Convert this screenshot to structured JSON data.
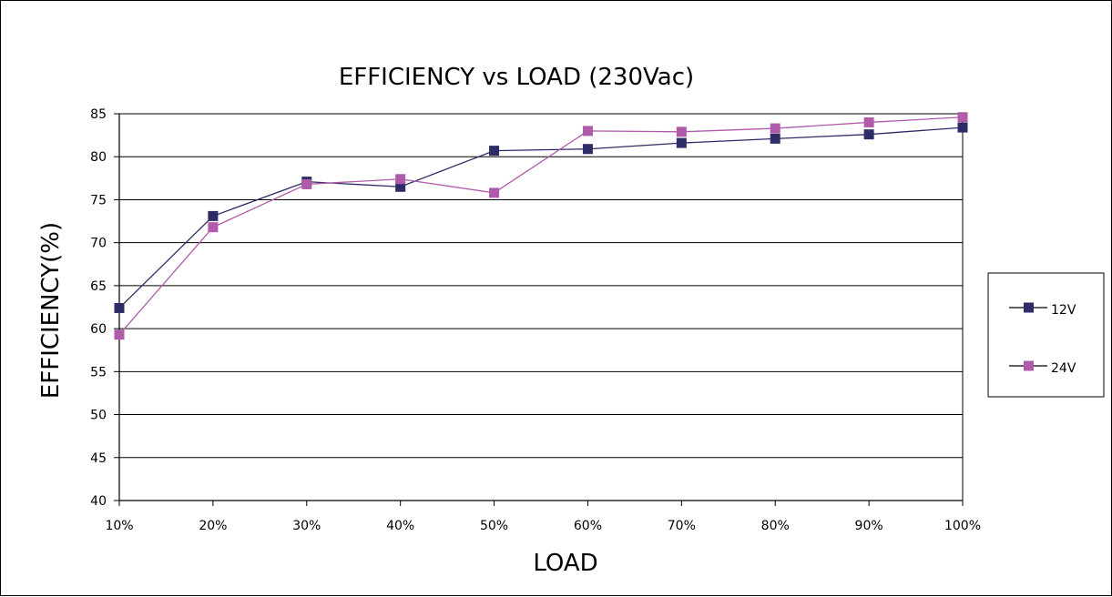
{
  "chart_data": {
    "type": "line",
    "title": "EFFICIENCY vs LOAD (230Vac)",
    "xlabel": "LOAD",
    "ylabel": "EFFICIENCY(%)",
    "categories": [
      "10%",
      "20%",
      "30%",
      "40%",
      "50%",
      "60%",
      "70%",
      "80%",
      "90%",
      "100%"
    ],
    "ylim": [
      40,
      85
    ],
    "yticks": [
      85,
      80,
      75,
      70,
      65,
      60,
      55,
      50,
      45,
      40
    ],
    "grid": true,
    "legend": "right",
    "series": [
      {
        "name": "12V",
        "color": "#2e2c66",
        "values": [
          62.4,
          73.1,
          77.1,
          76.5,
          80.7,
          80.9,
          81.6,
          82.1,
          82.6,
          83.4
        ]
      },
      {
        "name": "24V",
        "color": "#b05aaa",
        "values": [
          59.3,
          71.8,
          76.8,
          77.4,
          75.8,
          83.0,
          82.9,
          83.3,
          84.0,
          84.6
        ]
      }
    ]
  }
}
